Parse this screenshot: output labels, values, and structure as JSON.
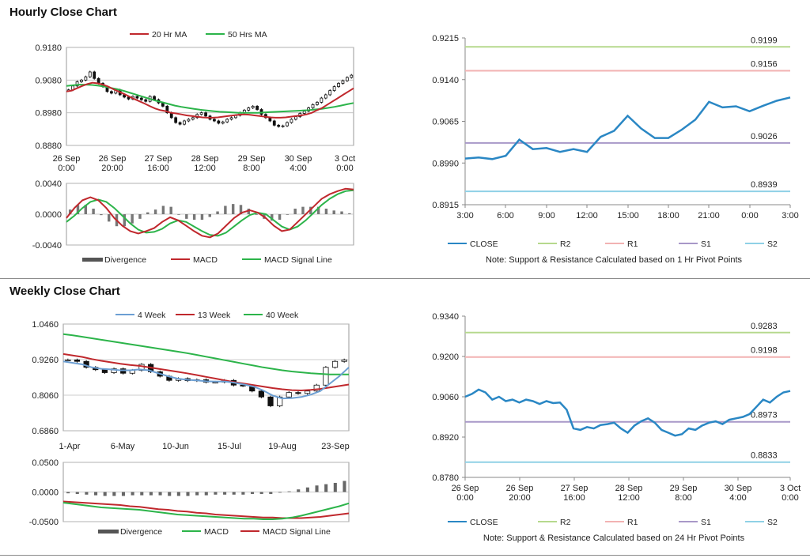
{
  "sections": {
    "hourly_title": "Hourly Close Chart",
    "weekly_title": "Weekly Close Chart"
  },
  "colors": {
    "ma_short": "#c0282d",
    "ma_long": "#2cb44a",
    "ma_4w": "#6c9fd3",
    "close": "#2a87c4",
    "r2": "#b6d98d",
    "r1": "#f2b2b2",
    "s1": "#a898c8",
    "s2": "#8fd1e6",
    "divergence": "#555555",
    "macd_h": "#c0282d",
    "signal_h": "#2cb44a"
  },
  "chart_data": [
    {
      "id": "hourly-price",
      "type": "candlestick",
      "legend": [
        "20 Hr MA",
        "50 Hrs MA"
      ],
      "ylim": [
        0.888,
        0.918
      ],
      "yticks": [
        "0.9180",
        "0.9080",
        "0.8980",
        "0.8880"
      ],
      "xticks": [
        "26 Sep\n0:00",
        "26 Sep\n20:00",
        "27 Sep\n16:00",
        "28 Sep\n12:00",
        "29 Sep\n8:00",
        "30 Sep\n4:00",
        "3 Oct\n0:00"
      ],
      "close": [
        0.905,
        0.9062,
        0.9075,
        0.908,
        0.909,
        0.9105,
        0.9085,
        0.907,
        0.906,
        0.9045,
        0.904,
        0.905,
        0.9035,
        0.9028,
        0.9022,
        0.903,
        0.9025,
        0.902,
        0.9015,
        0.903,
        0.902,
        0.901,
        0.9,
        0.898,
        0.8965,
        0.895,
        0.8945,
        0.8955,
        0.896,
        0.8965,
        0.8975,
        0.898,
        0.897,
        0.896,
        0.8955,
        0.8948,
        0.8952,
        0.896,
        0.8965,
        0.8972,
        0.898,
        0.8988,
        0.8995,
        0.9,
        0.899,
        0.8975,
        0.8965,
        0.8955,
        0.8942,
        0.8938,
        0.894,
        0.895,
        0.896,
        0.8968,
        0.8978,
        0.8985,
        0.8995,
        0.9005,
        0.9012,
        0.9025,
        0.9035,
        0.9048,
        0.906,
        0.907,
        0.9078,
        0.9088,
        0.9095
      ],
      "ma20": [
        0.9045,
        0.9048,
        0.9055,
        0.9062,
        0.9068,
        0.9072,
        0.907,
        0.9066,
        0.906,
        0.9052,
        0.9045,
        0.9038,
        0.903,
        0.9022,
        0.9015,
        0.9008,
        0.9,
        0.8993,
        0.8988,
        0.8985,
        0.898,
        0.8978,
        0.8975,
        0.8972,
        0.897,
        0.8968,
        0.8966,
        0.8965,
        0.8965,
        0.8966,
        0.8968,
        0.897,
        0.8972,
        0.8974,
        0.8975,
        0.8974,
        0.8972,
        0.897,
        0.8968,
        0.8966,
        0.8965,
        0.8965,
        0.8966,
        0.8968,
        0.897,
        0.8972,
        0.8975,
        0.898,
        0.8988,
        0.8995,
        0.9005,
        0.9015,
        0.9025,
        0.9035,
        0.9045,
        0.9055
      ],
      "ma50": [
        0.9062,
        0.9064,
        0.9066,
        0.9066,
        0.9065,
        0.9063,
        0.906,
        0.9056,
        0.9052,
        0.9047,
        0.9041,
        0.9035,
        0.9029,
        0.9023,
        0.9017,
        0.9012,
        0.9007,
        0.9002,
        0.8998,
        0.8995,
        0.8992,
        0.8989,
        0.8987,
        0.8985,
        0.8983,
        0.8982,
        0.8981,
        0.898,
        0.898,
        0.898,
        0.898,
        0.8981,
        0.8982,
        0.8983,
        0.8984,
        0.8985,
        0.8986,
        0.8987,
        0.8988,
        0.899,
        0.8992,
        0.8995,
        0.8998,
        0.9002,
        0.9006,
        0.901
      ],
      "y_decimals": 4
    },
    {
      "id": "hourly-macd",
      "type": "macd",
      "legend": [
        "Divergence",
        "MACD",
        "MACD Signal Line"
      ],
      "ylim": [
        -0.004,
        0.004
      ],
      "yticks": [
        "0.0040",
        "0.0000",
        "-0.0040"
      ],
      "macd": [
        -0.0005,
        0.0008,
        0.0018,
        0.0022,
        0.0018,
        0.0008,
        -0.0005,
        -0.0015,
        -0.0022,
        -0.0025,
        -0.0022,
        -0.0018,
        -0.001,
        -0.0004,
        -0.0008,
        -0.0015,
        -0.0022,
        -0.0028,
        -0.003,
        -0.0025,
        -0.0015,
        -0.0005,
        0.0002,
        0.0005,
        0.0002,
        -0.0005,
        -0.0015,
        -0.0022,
        -0.002,
        -0.001,
        0.0,
        0.001,
        0.002,
        0.0026,
        0.003,
        0.0033,
        0.0032
      ],
      "signal": [
        -0.001,
        -0.0002,
        0.0008,
        0.0016,
        0.0019,
        0.0016,
        0.0008,
        -0.0002,
        -0.0012,
        -0.002,
        -0.0024,
        -0.0023,
        -0.0019,
        -0.0012,
        -0.0008,
        -0.001,
        -0.0016,
        -0.0022,
        -0.0027,
        -0.0028,
        -0.0024,
        -0.0016,
        -0.0008,
        -0.0001,
        0.0002,
        0.0,
        -0.0008,
        -0.0016,
        -0.002,
        -0.0016,
        -0.0008,
        0.0002,
        0.0012,
        0.002,
        0.0026,
        0.003,
        0.0031
      ]
    },
    {
      "id": "hourly-pivot",
      "type": "line",
      "ylim": [
        0.8915,
        0.9215
      ],
      "yticks": [
        "0.9215",
        "0.9140",
        "0.9065",
        "0.8990",
        "0.8915"
      ],
      "xticks": [
        "3:00",
        "6:00",
        "9:00",
        "12:00",
        "15:00",
        "18:00",
        "21:00",
        "0:00",
        "3:00"
      ],
      "close": [
        0.8998,
        0.9,
        0.8997,
        0.9003,
        0.9032,
        0.9015,
        0.9017,
        0.901,
        0.9015,
        0.901,
        0.9037,
        0.9048,
        0.9075,
        0.9052,
        0.9035,
        0.9035,
        0.905,
        0.9068,
        0.91,
        0.909,
        0.9092,
        0.9083,
        0.9093,
        0.9102,
        0.9108
      ],
      "levels": [
        {
          "name": "R2",
          "value": 0.9199,
          "label": "0.9199",
          "color": "#b6d98d"
        },
        {
          "name": "R1",
          "value": 0.9156,
          "label": "0.9156",
          "color": "#f2b2b2"
        },
        {
          "name": "S1",
          "value": 0.9026,
          "label": "0.9026",
          "color": "#a898c8"
        },
        {
          "name": "S2",
          "value": 0.8939,
          "label": "0.8939",
          "color": "#8fd1e6"
        }
      ],
      "legend": [
        "CLOSE",
        "R2",
        "R1",
        "S1",
        "S2"
      ],
      "note": "Note: Support & Resistance Calculated based on 1 Hr Pivot Points"
    },
    {
      "id": "weekly-price",
      "type": "candlestick",
      "legend": [
        "4 Week",
        "13 Week",
        "40 Week"
      ],
      "ylim": [
        0.686,
        1.046
      ],
      "yticks": [
        "1.0460",
        "0.9260",
        "0.8060",
        "0.6860"
      ],
      "xticks": [
        "1-Apr",
        "6-May",
        "10-Jun",
        "15-Jul",
        "19-Aug",
        "23-Sep"
      ],
      "close": [
        0.925,
        0.92,
        0.9,
        0.892,
        0.882,
        0.895,
        0.88,
        0.89,
        0.91,
        0.885,
        0.87,
        0.856,
        0.862,
        0.855,
        0.858,
        0.85,
        0.85,
        0.856,
        0.84,
        0.838,
        0.82,
        0.8,
        0.77,
        0.8,
        0.815,
        0.812,
        0.82,
        0.84,
        0.9,
        0.92,
        0.925
      ],
      "ma4": [
        0.92,
        0.915,
        0.91,
        0.9,
        0.895,
        0.893,
        0.89,
        0.89,
        0.893,
        0.89,
        0.88,
        0.87,
        0.862,
        0.858,
        0.856,
        0.853,
        0.852,
        0.852,
        0.848,
        0.842,
        0.835,
        0.822,
        0.805,
        0.795,
        0.796,
        0.8,
        0.808,
        0.82,
        0.845,
        0.87,
        0.9
      ],
      "ma13": [
        0.945,
        0.94,
        0.935,
        0.928,
        0.922,
        0.917,
        0.912,
        0.908,
        0.905,
        0.9,
        0.895,
        0.89,
        0.885,
        0.88,
        0.874,
        0.868,
        0.862,
        0.856,
        0.85,
        0.845,
        0.84,
        0.835,
        0.83,
        0.826,
        0.823,
        0.822,
        0.824,
        0.827,
        0.832,
        0.837,
        0.842
      ],
      "ma40": [
        1.012,
        1.008,
        1.003,
        0.998,
        0.993,
        0.988,
        0.983,
        0.978,
        0.973,
        0.968,
        0.963,
        0.958,
        0.953,
        0.948,
        0.942,
        0.936,
        0.93,
        0.924,
        0.918,
        0.912,
        0.906,
        0.9,
        0.895,
        0.89,
        0.886,
        0.883,
        0.88,
        0.878,
        0.876,
        0.876,
        0.876
      ]
    },
    {
      "id": "weekly-macd",
      "type": "macd",
      "legend": [
        "Divergence",
        "MACD",
        "MACD Signal Line"
      ],
      "ylim": [
        -0.05,
        0.05
      ],
      "yticks": [
        "0.0500",
        "0.0000",
        "-0.0500"
      ],
      "macd": [
        -0.018,
        -0.02,
        -0.022,
        -0.024,
        -0.026,
        -0.027,
        -0.028,
        -0.029,
        -0.03,
        -0.032,
        -0.034,
        -0.036,
        -0.038,
        -0.039,
        -0.04,
        -0.041,
        -0.042,
        -0.043,
        -0.044,
        -0.045,
        -0.045,
        -0.046,
        -0.046,
        -0.045,
        -0.043,
        -0.04,
        -0.036,
        -0.032,
        -0.028,
        -0.024,
        -0.019
      ],
      "signal": [
        -0.016,
        -0.017,
        -0.018,
        -0.019,
        -0.02,
        -0.021,
        -0.022,
        -0.024,
        -0.025,
        -0.027,
        -0.029,
        -0.03,
        -0.032,
        -0.033,
        -0.035,
        -0.036,
        -0.038,
        -0.039,
        -0.04,
        -0.041,
        -0.042,
        -0.043,
        -0.043,
        -0.044,
        -0.044,
        -0.044,
        -0.043,
        -0.042,
        -0.04,
        -0.038,
        -0.036
      ]
    },
    {
      "id": "weekly-pivot",
      "type": "line",
      "ylim": [
        0.878,
        0.934
      ],
      "yticks": [
        "0.9340",
        "0.9200",
        "0.9060",
        "0.8920",
        "0.8780"
      ],
      "xticks": [
        "26 Sep\n0:00",
        "26 Sep\n20:00",
        "27 Sep\n16:00",
        "28 Sep\n12:00",
        "29 Sep\n8:00",
        "30 Sep\n4:00",
        "3 Oct\n0:00"
      ],
      "close": [
        0.906,
        0.907,
        0.9085,
        0.9075,
        0.905,
        0.906,
        0.9045,
        0.905,
        0.904,
        0.905,
        0.9045,
        0.9035,
        0.9045,
        0.9038,
        0.904,
        0.9015,
        0.895,
        0.8945,
        0.8955,
        0.895,
        0.8962,
        0.8965,
        0.897,
        0.895,
        0.8935,
        0.896,
        0.8975,
        0.8985,
        0.897,
        0.8945,
        0.8935,
        0.8925,
        0.893,
        0.895,
        0.8945,
        0.896,
        0.897,
        0.8975,
        0.8965,
        0.898,
        0.8985,
        0.899,
        0.9,
        0.9025,
        0.905,
        0.904,
        0.906,
        0.9075,
        0.908
      ],
      "levels": [
        {
          "name": "R2",
          "value": 0.9283,
          "label": "0.9283",
          "color": "#b6d98d"
        },
        {
          "name": "R1",
          "value": 0.9198,
          "label": "0.9198",
          "color": "#f2b2b2"
        },
        {
          "name": "S1",
          "value": 0.8973,
          "label": "0.8973",
          "color": "#a898c8"
        },
        {
          "name": "S2",
          "value": 0.8833,
          "label": "0.8833",
          "color": "#8fd1e6"
        }
      ],
      "legend": [
        "CLOSE",
        "R2",
        "R1",
        "S1",
        "S2"
      ],
      "note": "Note: Support & Resistance Calculated based on 24 Hr Pivot Points"
    }
  ]
}
